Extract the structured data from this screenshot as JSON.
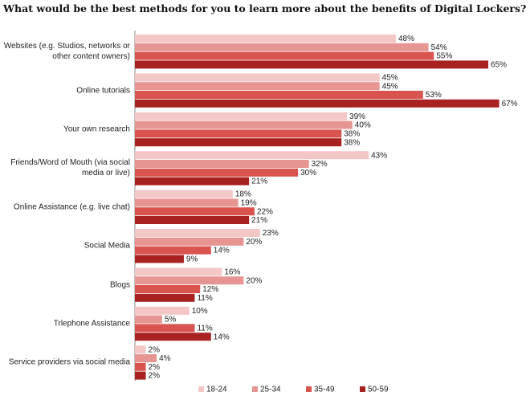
{
  "chart_data": {
    "type": "hbar",
    "title": "What would be the best methods for you to learn more about the benefits of Digital Lockers?",
    "categories": [
      "Websites (e.g. Studios, networks or other content owners)",
      "Online tutorials",
      "Your own research",
      "Friends/Word of Mouth (via social media or live)",
      "Online Assistance (e.g. live chat)",
      "Social Media",
      "Blogs",
      "Trlephone Assistance",
      "Service providers via social media"
    ],
    "series": [
      {
        "name": "18-24",
        "color": "#f4c7c7",
        "values": [
          48,
          45,
          39,
          43,
          18,
          23,
          16,
          10,
          2
        ],
        "value_labels": [
          "48%",
          "45%",
          "39%",
          "43%",
          "18%",
          "23%",
          "16%",
          "10%",
          "2%"
        ]
      },
      {
        "name": "25-34",
        "color": "#e69593",
        "values": [
          54,
          45,
          40,
          32,
          19,
          20,
          20,
          5,
          4
        ],
        "value_labels": [
          "54%",
          "45%",
          "40%",
          "32%",
          "19%",
          "20%",
          "20%",
          "5%",
          "4%"
        ]
      },
      {
        "name": "35-49",
        "color": "#d9534f",
        "values": [
          55,
          53,
          38,
          30,
          22,
          14,
          12,
          11,
          2
        ],
        "value_labels": [
          "55%",
          "53%",
          "38%",
          "30%",
          "22%",
          "14%",
          "12%",
          "11%",
          "2%"
        ]
      },
      {
        "name": "50-59",
        "color": "#a82222",
        "values": [
          65,
          67,
          38,
          21,
          21,
          9,
          11,
          14,
          2
        ],
        "value_labels": [
          "65%",
          "67%",
          "38%",
          "21%",
          "21%",
          "9%",
          "11%",
          "14%",
          "2%"
        ]
      }
    ],
    "legend": "bottom"
  }
}
